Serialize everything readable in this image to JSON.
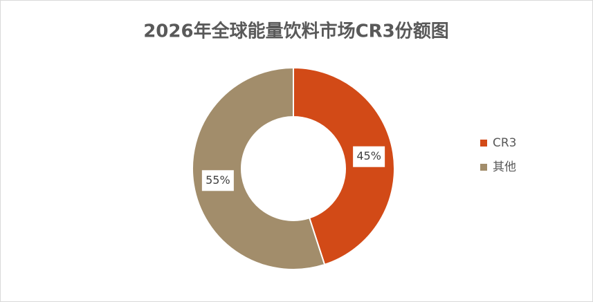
{
  "chart_data": {
    "type": "pie",
    "title": "2026年全球能量饮料市场CR3份额图",
    "categories": [
      "CR3",
      "其他"
    ],
    "values": [
      45,
      55
    ],
    "value_labels": [
      "45%",
      "55%"
    ],
    "colors": [
      "#d24a17",
      "#a28d6b"
    ],
    "donut": true,
    "legend": "right"
  }
}
